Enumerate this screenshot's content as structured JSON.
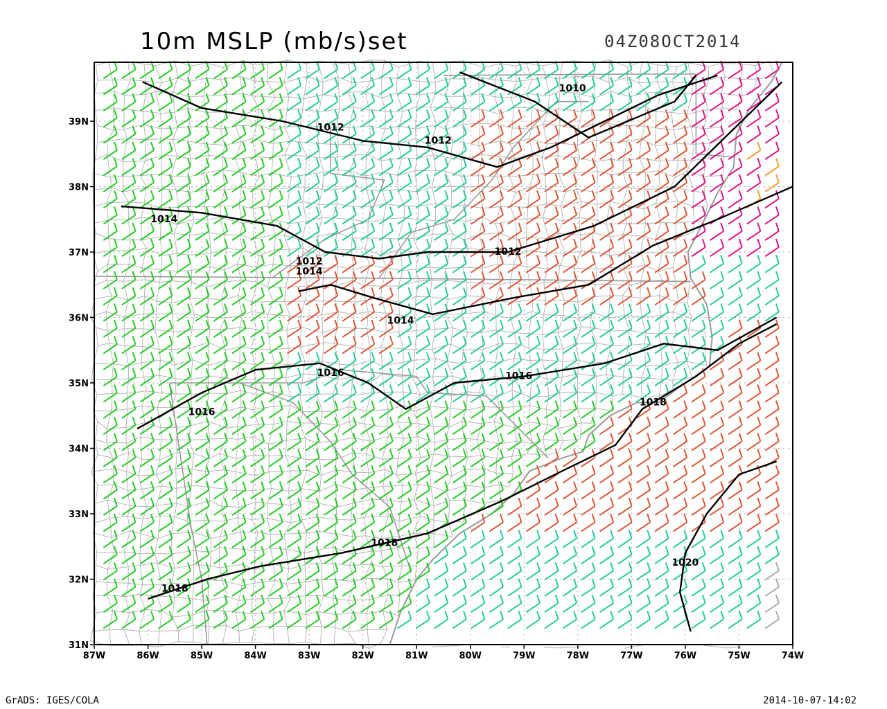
{
  "header": {
    "title": "10m MSLP (mb/s)set",
    "valid_time": "04Z08OCT2014"
  },
  "footer": {
    "software": "GrADS: IGES/COLA",
    "generated": "2014-10-07-14:02"
  },
  "map": {
    "lon_range": [
      -87,
      -74
    ],
    "lat_range": [
      31,
      39.9
    ],
    "lon_ticks": [
      "87W",
      "86W",
      "85W",
      "84W",
      "83W",
      "82W",
      "81W",
      "80W",
      "79W",
      "78W",
      "77W",
      "76W",
      "75W",
      "74W"
    ],
    "lat_ticks": [
      "31N",
      "32N",
      "33N",
      "34N",
      "35N",
      "36N",
      "37N",
      "38N",
      "39N"
    ],
    "grid": true,
    "wind_colors": {
      "light_green": "#22cc22",
      "teal": "#22cc99",
      "red_orange": "#dd5533",
      "magenta": "#dd1188",
      "orange": "#f0a030",
      "gray": "#aaaaaa"
    },
    "isobars": [
      {
        "value": "1010",
        "label_lon": -78.1,
        "label_lat": 39.5
      },
      {
        "value": "1012",
        "label_lon": -82.6,
        "label_lat": 38.9
      },
      {
        "value": "1012",
        "label_lon": -80.6,
        "label_lat": 38.7
      },
      {
        "value": "1014",
        "label_lon": -85.7,
        "label_lat": 37.5
      },
      {
        "value": "1012",
        "label_lon": -79.3,
        "label_lat": 37.0
      },
      {
        "value": "1012",
        "label_lon": -83.0,
        "label_lat": 36.85
      },
      {
        "value": "1014",
        "label_lon": -83.0,
        "label_lat": 36.7
      },
      {
        "value": "1014",
        "label_lon": -81.3,
        "label_lat": 35.95
      },
      {
        "value": "1016",
        "label_lon": -82.6,
        "label_lat": 35.15
      },
      {
        "value": "1016",
        "label_lon": -79.1,
        "label_lat": 35.1
      },
      {
        "value": "1016",
        "label_lon": -85.0,
        "label_lat": 34.55
      },
      {
        "value": "1018",
        "label_lon": -76.6,
        "label_lat": 34.7
      },
      {
        "value": "1018",
        "label_lon": -81.6,
        "label_lat": 32.55
      },
      {
        "value": "1018",
        "label_lon": -85.5,
        "label_lat": 31.85
      },
      {
        "value": "1020",
        "label_lon": -76.0,
        "label_lat": 32.25
      }
    ]
  }
}
